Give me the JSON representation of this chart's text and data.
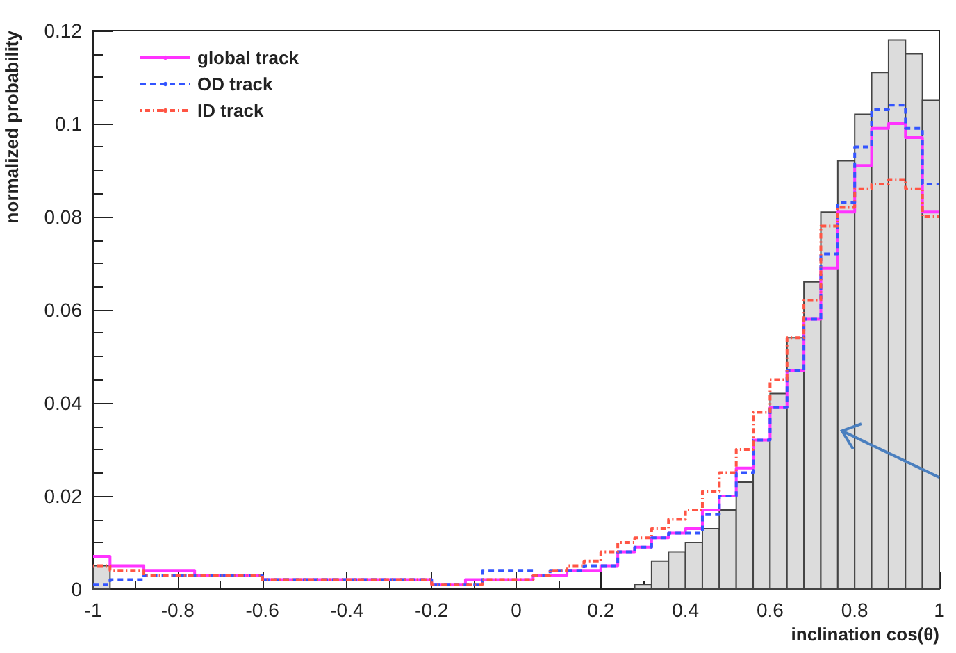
{
  "chart_data": {
    "type": "histogram",
    "xlabel": "inclination cos(θ)",
    "ylabel": "normalized probability",
    "bins": [
      -1,
      -0.96,
      -0.92,
      -0.88,
      -0.84,
      -0.8,
      -0.76,
      -0.72,
      -0.68,
      -0.64,
      -0.6,
      -0.56,
      -0.52,
      -0.48,
      -0.44,
      -0.4,
      -0.36,
      -0.32,
      -0.28,
      -0.24,
      -0.2,
      -0.16,
      -0.12,
      -0.08,
      -0.04,
      0,
      0.04,
      0.08,
      0.12,
      0.16,
      0.2,
      0.24,
      0.28,
      0.32,
      0.36,
      0.4,
      0.44,
      0.48,
      0.52,
      0.56,
      0.6,
      0.64,
      0.68,
      0.72,
      0.76,
      0.8,
      0.84,
      0.88,
      0.92,
      0.96,
      1
    ],
    "series": [
      {
        "color": "#dcdcdc",
        "values": [
          0.005,
          0,
          0,
          0,
          0,
          0,
          0,
          0,
          0,
          0,
          0,
          0,
          0,
          0,
          0,
          0,
          0,
          0,
          0,
          0,
          0,
          0,
          0,
          0,
          0,
          0,
          0,
          0,
          0,
          0,
          0,
          0,
          0.001,
          0.006,
          0.008,
          0.01,
          0.013,
          0.017,
          0.023,
          0.032,
          0.042,
          0.054,
          0.066,
          0.081,
          0.092,
          0.102,
          0.111,
          0.118,
          0.115,
          0.105
        ]
      },
      {
        "name": "global track",
        "color": "#ff33ff",
        "line_style": "solid",
        "values": [
          0.007,
          0.005,
          0.005,
          0.004,
          0.004,
          0.004,
          0.003,
          0.003,
          0.003,
          0.003,
          0.002,
          0.002,
          0.002,
          0.002,
          0.002,
          0.002,
          0.002,
          0.002,
          0.002,
          0.002,
          0.001,
          0.001,
          0.002,
          0.002,
          0.002,
          0.002,
          0.003,
          0.003,
          0.004,
          0.004,
          0.005,
          0.008,
          0.009,
          0.011,
          0.012,
          0.013,
          0.017,
          0.02,
          0.026,
          0.032,
          0.039,
          0.047,
          0.058,
          0.069,
          0.081,
          0.091,
          0.099,
          0.1,
          0.097,
          0.081
        ]
      },
      {
        "name": "OD track",
        "color": "#3355ff",
        "line_style": "dashed",
        "values": [
          0.001,
          0.002,
          0.002,
          0.003,
          0.003,
          0.003,
          0.003,
          0.003,
          0.003,
          0.003,
          0.002,
          0.002,
          0.002,
          0.002,
          0.002,
          0.002,
          0.002,
          0.002,
          0.002,
          0.002,
          0.001,
          0.001,
          0.001,
          0.004,
          0.004,
          0.004,
          0.003,
          0.004,
          0.004,
          0.005,
          0.005,
          0.008,
          0.009,
          0.011,
          0.012,
          0.012,
          0.016,
          0.02,
          0.025,
          0.032,
          0.039,
          0.047,
          0.058,
          0.072,
          0.083,
          0.095,
          0.103,
          0.104,
          0.099,
          0.087
        ]
      },
      {
        "name": "ID track",
        "color": "#ff5544",
        "line_style": "dotted",
        "values": [
          0.005,
          0.004,
          0.004,
          0.003,
          0.003,
          0.003,
          0.003,
          0.003,
          0.003,
          0.003,
          0.002,
          0.002,
          0.002,
          0.002,
          0.002,
          0.002,
          0.002,
          0.002,
          0.002,
          0.002,
          0.001,
          0.001,
          0.001,
          0.002,
          0.002,
          0.002,
          0.003,
          0.004,
          0.005,
          0.006,
          0.008,
          0.01,
          0.011,
          0.013,
          0.015,
          0.017,
          0.021,
          0.025,
          0.03,
          0.038,
          0.045,
          0.054,
          0.062,
          0.078,
          0.082,
          0.086,
          0.087,
          0.088,
          0.086,
          0.08
        ]
      }
    ],
    "xlim": [
      -1,
      1
    ],
    "xticks": [
      -1,
      -0.8,
      -0.6,
      -0.4,
      -0.2,
      0,
      0.2,
      0.4,
      0.6,
      0.8,
      1
    ],
    "ylim": [
      0,
      0.12
    ],
    "yticks": [
      0,
      0.02,
      0.04,
      0.06,
      0.08,
      0.1,
      0.12
    ],
    "legend": "top left",
    "grid": false
  }
}
